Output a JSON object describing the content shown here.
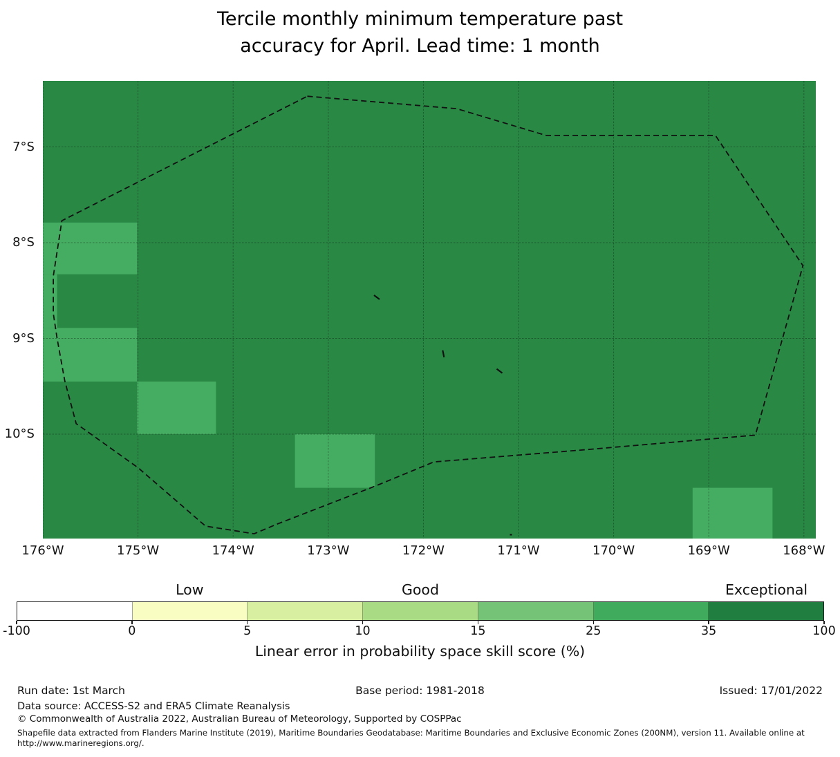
{
  "title": "Tercile monthly minimum temperature past\naccuracy for April. Lead time: 1 month",
  "chart_data": {
    "type": "heatmap",
    "subtype": "geographic-skill-map",
    "title": "Tercile monthly minimum temperature past accuracy for April. Lead time: 1 month",
    "axes": {
      "extent": {
        "west_lon": 176.0,
        "east_lon": 167.875,
        "north_lat": 6.31,
        "south_lat": 11.09
      },
      "lon_ticks": [
        {
          "label": "176°W",
          "lon": 176
        },
        {
          "label": "175°W",
          "lon": 175
        },
        {
          "label": "174°W",
          "lon": 174
        },
        {
          "label": "173°W",
          "lon": 173
        },
        {
          "label": "172°W",
          "lon": 172
        },
        {
          "label": "171°W",
          "lon": 171
        },
        {
          "label": "170°W",
          "lon": 170
        },
        {
          "label": "169°W",
          "lon": 169
        },
        {
          "label": "168°W",
          "lon": 168
        }
      ],
      "lat_ticks": [
        {
          "label": "7°S",
          "lat": 7
        },
        {
          "label": "8°S",
          "lat": 8
        },
        {
          "label": "9°S",
          "lat": 9
        },
        {
          "label": "10°S",
          "lat": 10
        }
      ],
      "grid": true
    },
    "base_field": {
      "skill_band": "35-100",
      "color": "#2a8845"
    },
    "cells": [
      {
        "west": 176.0,
        "east": 175.01,
        "north": 7.79,
        "south": 8.33,
        "skill_band": "25-35",
        "color": "#45ad61"
      },
      {
        "west": 176.0,
        "east": 175.85,
        "north": 8.33,
        "south": 8.89,
        "skill_band": "25-35",
        "color": "#45ad61"
      },
      {
        "west": 176.0,
        "east": 175.01,
        "north": 8.89,
        "south": 9.45,
        "skill_band": "25-35",
        "color": "#45ad61"
      },
      {
        "west": 175.01,
        "east": 174.18,
        "north": 9.45,
        "south": 10.0,
        "skill_band": "25-35",
        "color": "#45ad61"
      },
      {
        "west": 173.35,
        "east": 172.51,
        "north": 10.0,
        "south": 10.56,
        "skill_band": "25-35",
        "color": "#45ad61"
      },
      {
        "west": 169.17,
        "east": 168.33,
        "north": 10.56,
        "south": 11.09,
        "skill_band": "25-35",
        "color": "#45ad61"
      }
    ],
    "eez_boundary": [
      [
        173.22,
        6.47
      ],
      [
        171.65,
        6.6
      ],
      [
        170.71,
        6.88
      ],
      [
        168.93,
        6.88
      ],
      [
        168.01,
        8.24
      ],
      [
        168.51,
        10.01
      ],
      [
        170.27,
        10.16
      ],
      [
        171.89,
        10.29
      ],
      [
        172.5,
        10.54
      ],
      [
        173.54,
        10.94
      ],
      [
        173.78,
        11.04
      ],
      [
        174.29,
        10.96
      ],
      [
        175.0,
        10.35
      ],
      [
        175.48,
        10.01
      ],
      [
        175.65,
        9.89
      ],
      [
        175.77,
        9.44
      ],
      [
        175.85,
        9.0
      ],
      [
        175.89,
        8.74
      ],
      [
        175.89,
        8.35
      ],
      [
        175.8,
        7.77
      ]
    ],
    "islands": [
      {
        "lon": 172.49,
        "lat": 8.57,
        "shape": "diag"
      },
      {
        "lon": 171.79,
        "lat": 9.16,
        "shape": "vert"
      },
      {
        "lon": 171.2,
        "lat": 9.34,
        "shape": "diag"
      },
      {
        "lon": 171.08,
        "lat": 11.05,
        "shape": "dot"
      }
    ]
  },
  "colorbar": {
    "tick_labels": [
      "-100",
      "0",
      "5",
      "10",
      "15",
      "25",
      "35",
      "100"
    ],
    "segment_colors": [
      "#ffffff",
      "#fafdc1",
      "#d8efa1",
      "#a9da84",
      "#74c376",
      "#40aa5d",
      "#207e41"
    ],
    "categories": [
      {
        "label": "Low",
        "segment": 1
      },
      {
        "label": "Good",
        "segment": 3
      },
      {
        "label": "Exceptional",
        "segment": 6
      }
    ],
    "axis_label": "Linear error in probability space skill score (%)"
  },
  "footer": {
    "run_date": "Run date: 1st March",
    "base_period": "Base period: 1981-2018",
    "issued": "Issued: 17/01/2022",
    "data_source": "Data source: ACCESS-S2 and ERA5 Climate Reanalysis",
    "copyright": "© Commonwealth of Australia 2022, Australian Bureau of Meteorology, Supported by COSPPac",
    "shapefile_note": "Shapefile data extracted from Flanders Marine Institute (2019), Maritime Boundaries Geodatabase: Maritime Boundaries and Exclusive Economic Zones (200NM), version 11. Available online at http://www.marineregions.org/."
  }
}
